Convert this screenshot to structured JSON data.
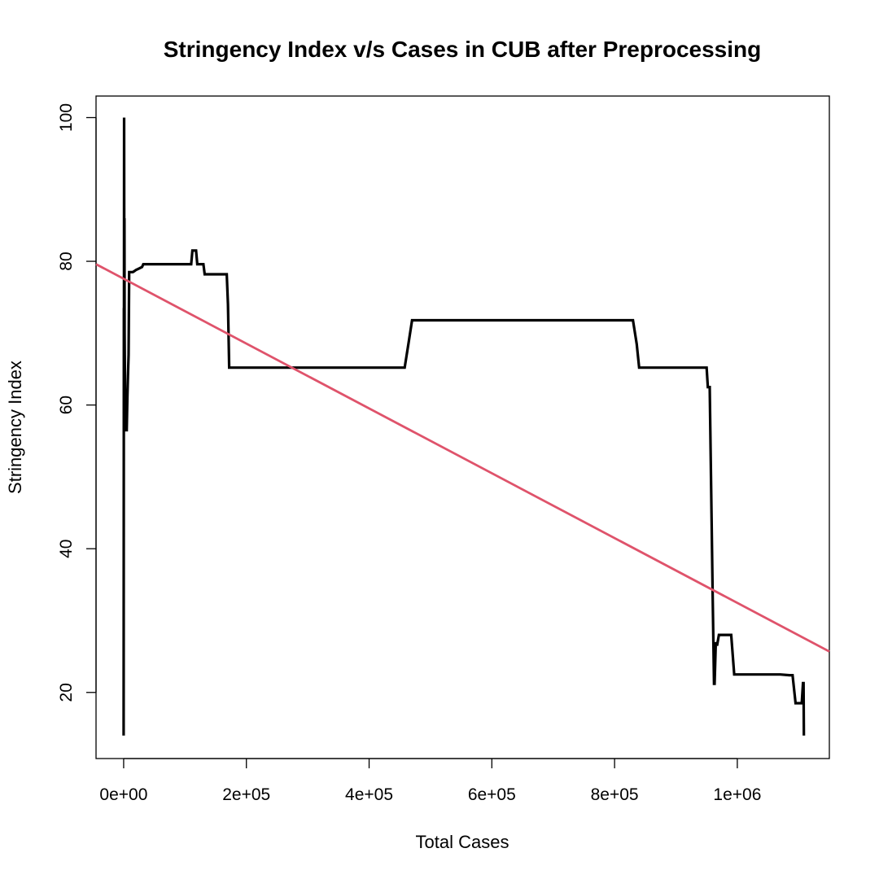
{
  "chart_data": {
    "type": "line",
    "title": "Stringency Index v/s Cases in CUB after Preprocessing",
    "xlabel": "Total Cases",
    "ylabel": "Stringency Index",
    "xlim": [
      -45000,
      1150000
    ],
    "ylim": [
      10.8,
      103
    ],
    "x_ticks": [
      0,
      200000,
      400000,
      600000,
      800000,
      1000000
    ],
    "x_tick_labels": [
      "0e+00",
      "2e+05",
      "4e+05",
      "6e+05",
      "8e+05",
      "1e+06"
    ],
    "y_ticks": [
      20,
      40,
      60,
      80,
      100
    ],
    "y_tick_labels": [
      "20",
      "40",
      "60",
      "80",
      "100"
    ],
    "grid": false,
    "series": [
      {
        "color": "#000000",
        "x": [
          0,
          300,
          500,
          800,
          1000,
          1300,
          1600,
          2000,
          2400,
          2800,
          3200,
          3700,
          4200,
          5000,
          6000,
          7000,
          8000,
          9000,
          10000,
          11000,
          12000,
          13000,
          14000,
          15000,
          17000,
          20000,
          25000,
          30000,
          32000,
          35000,
          60000,
          90000,
          110000,
          112000,
          115000,
          118000,
          120000,
          125000,
          130000,
          132000,
          135000,
          150000,
          168000,
          170000,
          172000,
          175000,
          200000,
          300000,
          400000,
          458000,
          464000,
          470000,
          600000,
          700000,
          830000,
          836000,
          840000,
          900000,
          950000,
          952000,
          955000,
          958000,
          960000,
          962000,
          963000,
          965000,
          967000,
          970000,
          975000,
          990000,
          995000,
          1000000,
          1050000,
          1070000,
          1085000,
          1090000,
          1095000,
          1100000,
          1105000,
          1107000,
          1108000,
          1108500
        ],
        "y": [
          14,
          73.5,
          68,
          100,
          78,
          86,
          70,
          65,
          60,
          58,
          62,
          56.5,
          56.5,
          56.5,
          61,
          64,
          67,
          78.5,
          78.5,
          78.5,
          78.5,
          78.5,
          78.5,
          78.5,
          78.6,
          78.8,
          79,
          79.2,
          79.6,
          79.6,
          79.6,
          79.6,
          79.6,
          81.5,
          81.5,
          81.5,
          79.6,
          79.6,
          79.6,
          78.2,
          78.2,
          78.2,
          78.2,
          74,
          65.2,
          65.2,
          65.2,
          65.2,
          65.2,
          65.2,
          68.5,
          71.8,
          71.8,
          71.8,
          71.8,
          68.5,
          65.2,
          65.2,
          65.2,
          62.5,
          62.5,
          45,
          33,
          21.2,
          21.2,
          27,
          26.5,
          28,
          28,
          28,
          22.5,
          22.5,
          22.5,
          22.5,
          22.4,
          22.4,
          18.5,
          18.5,
          18.5,
          21.3,
          21.3,
          14
        ]
      },
      {
        "color": "#DF536B",
        "x": [
          -45000,
          1150000
        ],
        "y": [
          79.6,
          25.7
        ]
      }
    ]
  }
}
